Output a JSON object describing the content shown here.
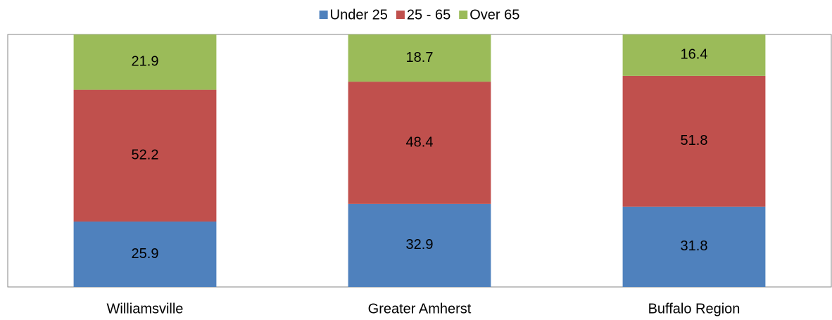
{
  "chart_data": {
    "type": "stacked-bar",
    "categories": [
      "Williamsville",
      "Greater Amherst",
      "Buffalo Region"
    ],
    "series": [
      {
        "name": "Under 25",
        "color": "#4f81bd",
        "values": [
          25.9,
          32.9,
          31.8
        ]
      },
      {
        "name": "25 - 65",
        "color": "#c0504d",
        "values": [
          52.2,
          48.4,
          51.8
        ]
      },
      {
        "name": "Over 65",
        "color": "#9bbb59",
        "values": [
          21.9,
          18.7,
          16.4
        ]
      }
    ],
    "ylim": [
      0,
      100
    ],
    "legend": "top"
  }
}
